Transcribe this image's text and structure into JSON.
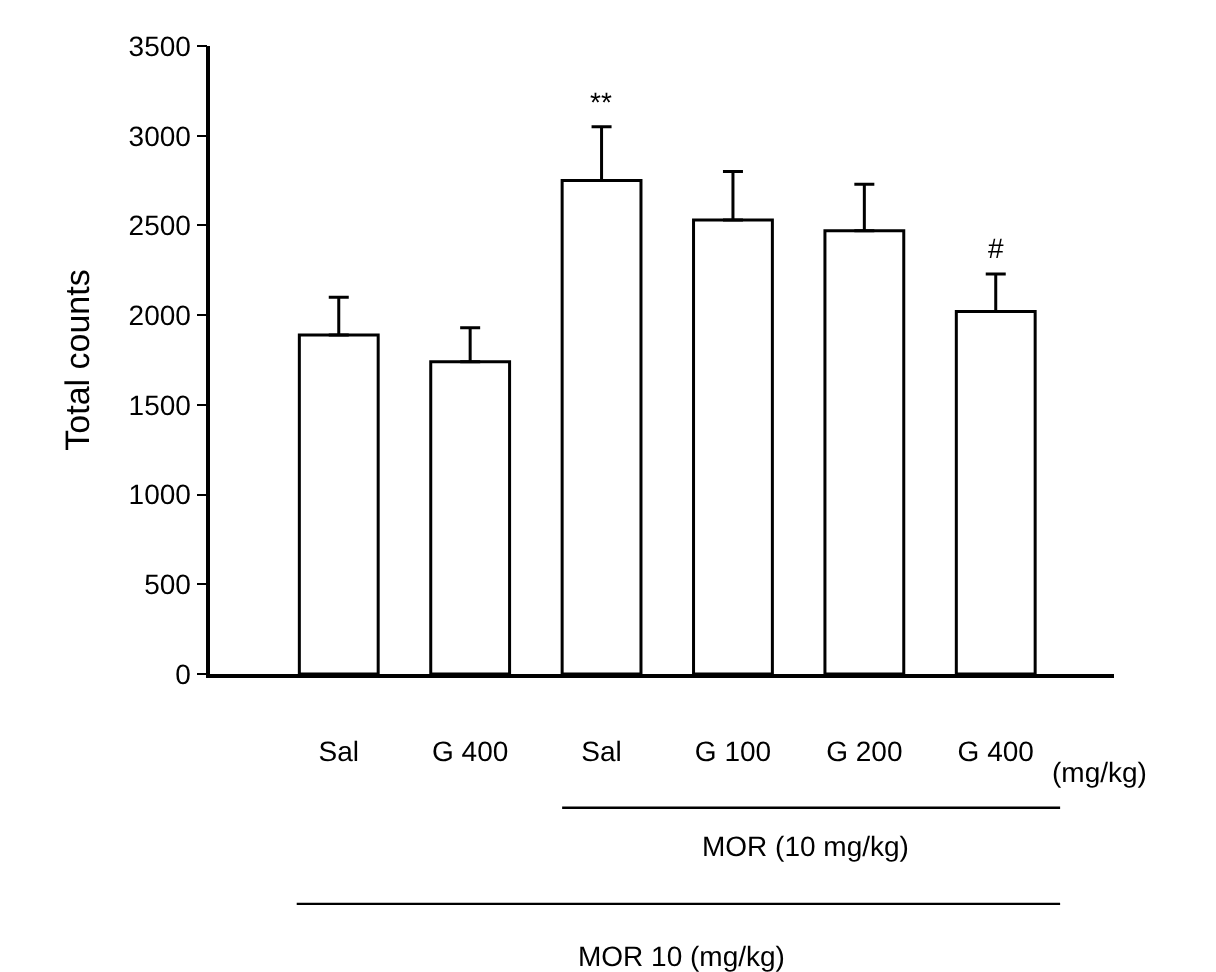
{
  "chart_data": {
    "type": "bar",
    "ylabel": "Total counts",
    "categories": [
      "Sal",
      "G 400",
      "Sal",
      "G 100",
      "G 200",
      "G 400"
    ],
    "values": [
      1890,
      1740,
      2750,
      2530,
      2470,
      2020
    ],
    "errors": [
      210,
      190,
      300,
      270,
      260,
      210
    ],
    "color": "#ffffff",
    "ylim": [
      0,
      3500
    ],
    "yticks": [
      0,
      500,
      1000,
      1500,
      2000,
      2500,
      3000,
      3500
    ],
    "legend": false,
    "annotations": [
      "**",
      "#",
      "(mg/kg)",
      "MOR (10 mg/kg)",
      "MOR 10 (mg/kg)"
    ]
  }
}
